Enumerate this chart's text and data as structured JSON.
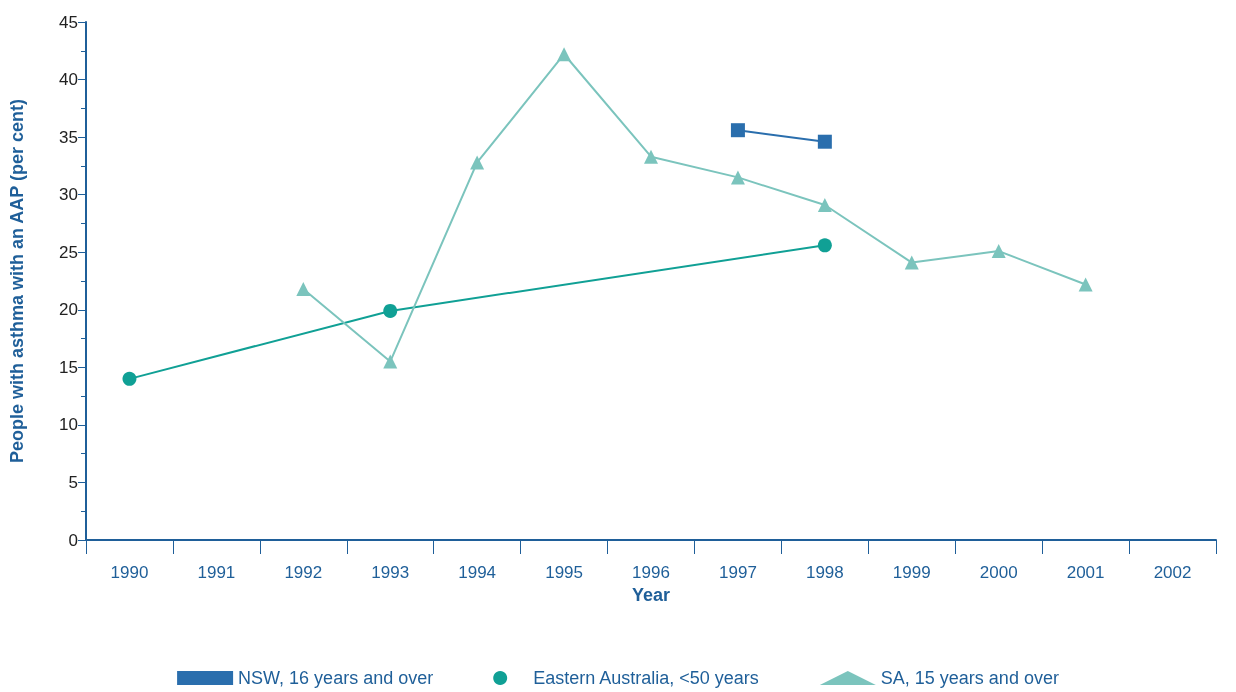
{
  "chart_data": {
    "type": "line",
    "xlabel": "Year",
    "ylabel": "People with asthma with an AAP (per cent)",
    "categories": [
      "1990",
      "1991",
      "1992",
      "1993",
      "1994",
      "1995",
      "1996",
      "1997",
      "1998",
      "1999",
      "2000",
      "2001",
      "2002"
    ],
    "ylim": [
      0,
      45
    ],
    "yticks": [
      0,
      5,
      10,
      15,
      20,
      25,
      30,
      35,
      40,
      45
    ],
    "grid": false,
    "legend": "bottom",
    "series": [
      {
        "name": "NSW, 16 years and over",
        "color": "#2a6ead",
        "marker": "square",
        "values": [
          null,
          null,
          null,
          null,
          null,
          null,
          null,
          35.6,
          34.6,
          null,
          null,
          null,
          null
        ]
      },
      {
        "name": "Eastern Australia, <50 years",
        "color": "#10a095",
        "marker": "circle",
        "values": [
          14.0,
          null,
          null,
          19.9,
          null,
          null,
          null,
          null,
          25.6,
          null,
          null,
          null,
          null
        ]
      },
      {
        "name": "SA, 15 years and over",
        "color": "#7bc4bd",
        "marker": "triangle",
        "values": [
          null,
          null,
          21.8,
          15.5,
          32.8,
          42.2,
          33.3,
          31.5,
          29.1,
          24.1,
          25.1,
          22.2,
          null
        ]
      }
    ]
  }
}
